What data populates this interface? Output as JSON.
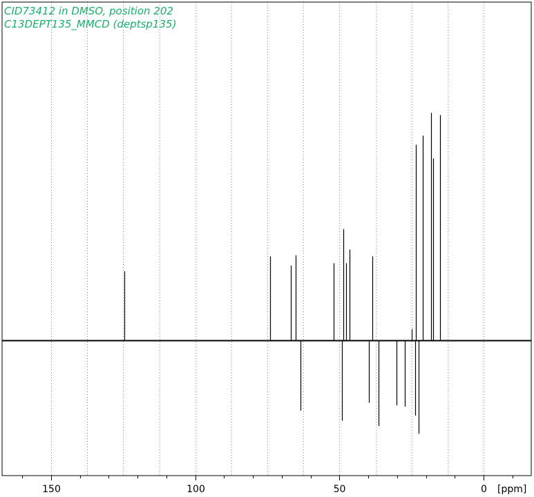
{
  "header": {
    "line1": "CID73412 in DMSO, position 202",
    "line2": "C13DEPT135_MMCD (deptsp135)"
  },
  "colors": {
    "text_accent": "#19b06a",
    "trace": "#000000",
    "grid": "#888888"
  },
  "chart_data": {
    "type": "line",
    "title": "",
    "xlabel": "[ppm]",
    "ylabel": "",
    "x_axis_reversed": true,
    "xlim": [
      167,
      -16.5
    ],
    "ylim": [
      -1.0,
      1.0
    ],
    "grid": "dotted vertical lines every 12.5 ppm from 0 to 150",
    "xticks": [
      {
        "value": 150,
        "label": "150"
      },
      {
        "value": 100,
        "label": "100"
      },
      {
        "value": 50,
        "label": "50"
      },
      {
        "value": 0,
        "label": "0"
      }
    ],
    "grid_values": [
      150,
      137.5,
      125,
      112.5,
      100,
      87.5,
      75,
      62.5,
      50,
      37.5,
      25,
      12.5,
      0
    ],
    "series": [
      {
        "peaks": [
          {
            "ppm": 124.7,
            "intensity": 0.305
          },
          {
            "ppm": 74.0,
            "intensity": 0.37
          },
          {
            "ppm": 66.8,
            "intensity": 0.33
          },
          {
            "ppm": 65.3,
            "intensity": 0.375
          },
          {
            "ppm": 63.4,
            "intensity": -0.27
          },
          {
            "ppm": 51.9,
            "intensity": 0.34
          },
          {
            "ppm": 49.2,
            "intensity": -0.31
          },
          {
            "ppm": 48.6,
            "intensity": 0.49
          },
          {
            "ppm": 47.6,
            "intensity": 0.34
          },
          {
            "ppm": 46.5,
            "intensity": 0.4
          },
          {
            "ppm": 39.8,
            "intensity": -0.24
          },
          {
            "ppm": 38.7,
            "intensity": 0.37
          },
          {
            "ppm": 36.5,
            "intensity": -0.33
          },
          {
            "ppm": 30.2,
            "intensity": -0.25
          },
          {
            "ppm": 27.4,
            "intensity": -0.255
          },
          {
            "ppm": 24.9,
            "intensity": 0.05
          },
          {
            "ppm": 23.7,
            "intensity": -0.29
          },
          {
            "ppm": 23.4,
            "intensity": 0.86
          },
          {
            "ppm": 22.5,
            "intensity": -0.36
          },
          {
            "ppm": 21.0,
            "intensity": 0.9
          },
          {
            "ppm": 18.2,
            "intensity": 1.0
          },
          {
            "ppm": 17.5,
            "intensity": 0.8
          },
          {
            "ppm": 15.1,
            "intensity": 0.99
          }
        ]
      }
    ]
  }
}
